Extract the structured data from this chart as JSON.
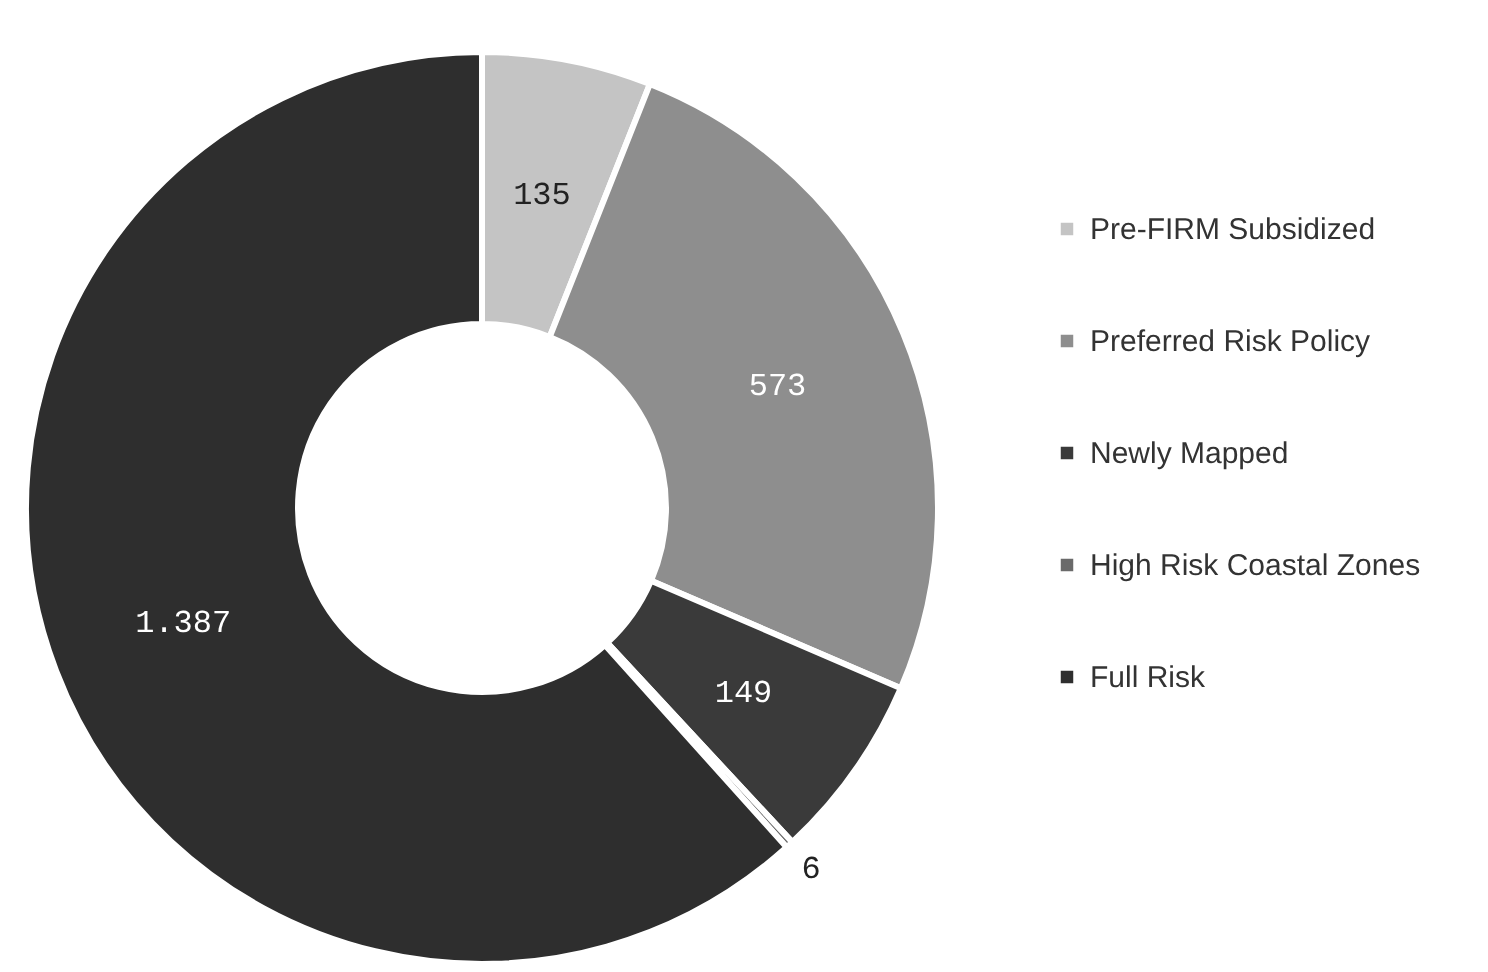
{
  "chart_data": {
    "type": "donut",
    "categories": [
      "Pre-FIRM Subsidized",
      "Preferred Risk Policy",
      "Newly Mapped",
      "High Risk Coastal Zones",
      "Full Risk"
    ],
    "values": [
      135,
      573,
      149,
      6,
      1387
    ],
    "colors": [
      "#c4c4c4",
      "#8e8e8e",
      "#3a3a3a",
      "#6a6a6a",
      "#2e2e2e"
    ],
    "value_labels": [
      "135",
      "573",
      "149",
      "6",
      "1.387"
    ],
    "legend": "right"
  }
}
